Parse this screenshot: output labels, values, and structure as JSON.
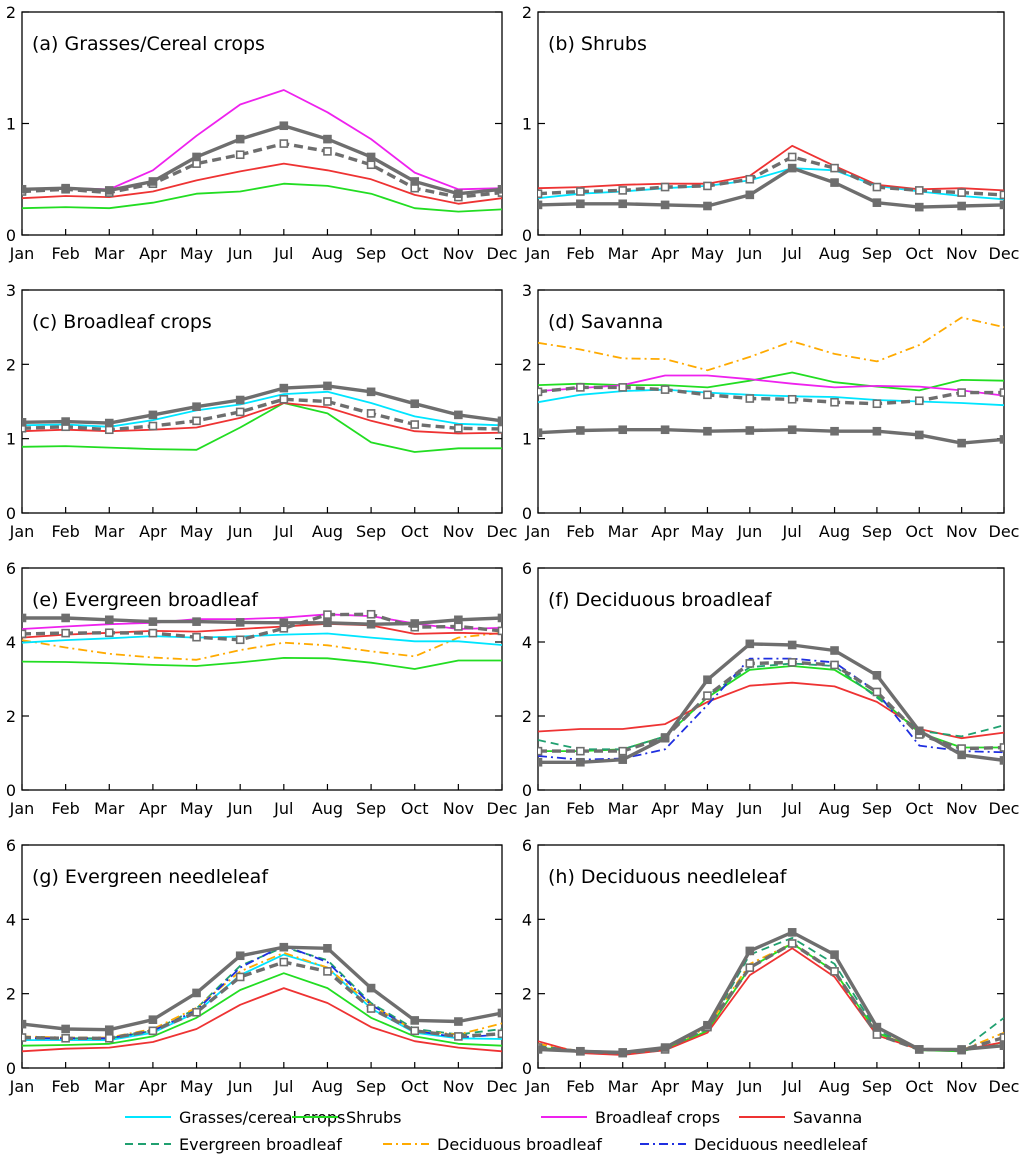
{
  "colors": {
    "grasses": "#00e5ff",
    "shrubs": "#22dd22",
    "broadleaf_crops": "#ee22ee",
    "savanna": "#ee3333",
    "evergreen_broadleaf": "#20a070",
    "deciduous_broadleaf": "#ffaa00",
    "deciduous_needleleaf": "#1f2fe0",
    "ref_solid": "#6e6e6e",
    "ref_dashed": "#6e6e6e"
  },
  "legend": {
    "items": [
      {
        "key": "grasses",
        "label": "Grasses/cereal crops",
        "dash": "solid"
      },
      {
        "key": "shrubs",
        "label": "Shrubs",
        "dash": "solid"
      },
      {
        "key": "broadleaf_crops",
        "label": "Broadleaf crops",
        "dash": "solid"
      },
      {
        "key": "savanna",
        "label": "Savanna",
        "dash": "solid"
      },
      {
        "key": "evergreen_broadleaf",
        "label": "Evergreen broadleaf",
        "dash": "dashed"
      },
      {
        "key": "deciduous_broadleaf",
        "label": "Deciduous broadleaf",
        "dash": "dashdot"
      },
      {
        "key": "deciduous_needleleaf",
        "label": "Deciduous needleleaf",
        "dash": "dashdot"
      }
    ]
  },
  "chart_data": [
    {
      "id": "a",
      "type": "line",
      "title": "(a) Grasses/Cereal crops",
      "categories": [
        "Jan",
        "Feb",
        "Mar",
        "Apr",
        "May",
        "Jun",
        "Jul",
        "Aug",
        "Sep",
        "Oct",
        "Nov",
        "Dec"
      ],
      "ylim": [
        0,
        2
      ],
      "yticks": [
        0,
        1,
        2
      ],
      "series": [
        {
          "key": "shrubs",
          "values": [
            0.24,
            0.25,
            0.24,
            0.29,
            0.37,
            0.39,
            0.46,
            0.44,
            0.37,
            0.24,
            0.21,
            0.23
          ]
        },
        {
          "key": "savanna",
          "values": [
            0.33,
            0.35,
            0.34,
            0.39,
            0.49,
            0.57,
            0.64,
            0.58,
            0.5,
            0.36,
            0.28,
            0.33
          ]
        },
        {
          "key": "broadleaf_crops",
          "values": [
            0.41,
            0.42,
            0.41,
            0.58,
            0.89,
            1.17,
            1.3,
            1.1,
            0.86,
            0.56,
            0.41,
            0.42
          ]
        },
        {
          "key": "ref_dashed",
          "marker": "square",
          "values": [
            0.39,
            0.41,
            0.38,
            0.46,
            0.64,
            0.72,
            0.82,
            0.75,
            0.63,
            0.42,
            0.34,
            0.38
          ]
        },
        {
          "key": "ref_solid",
          "marker": "square-filled",
          "values": [
            0.41,
            0.42,
            0.4,
            0.48,
            0.7,
            0.86,
            0.98,
            0.86,
            0.7,
            0.48,
            0.37,
            0.41
          ]
        }
      ]
    },
    {
      "id": "b",
      "type": "line",
      "title": "(b) Shrubs",
      "categories": [
        "Jan",
        "Feb",
        "Mar",
        "Apr",
        "May",
        "Jun",
        "Jul",
        "Aug",
        "Sep",
        "Oct",
        "Nov",
        "Dec"
      ],
      "ylim": [
        0,
        2
      ],
      "yticks": [
        0,
        1,
        2
      ],
      "series": [
        {
          "key": "grasses",
          "values": [
            0.33,
            0.37,
            0.39,
            0.42,
            0.44,
            0.49,
            0.6,
            0.58,
            0.44,
            0.39,
            0.35,
            0.32
          ]
        },
        {
          "key": "savanna",
          "values": [
            0.42,
            0.43,
            0.45,
            0.46,
            0.46,
            0.53,
            0.8,
            0.62,
            0.45,
            0.41,
            0.42,
            0.4
          ]
        },
        {
          "key": "ref_dashed",
          "marker": "square",
          "values": [
            0.37,
            0.39,
            0.4,
            0.43,
            0.44,
            0.5,
            0.7,
            0.6,
            0.43,
            0.4,
            0.38,
            0.36
          ]
        },
        {
          "key": "ref_solid",
          "marker": "square-filled",
          "values": [
            0.27,
            0.28,
            0.28,
            0.27,
            0.26,
            0.36,
            0.6,
            0.47,
            0.29,
            0.25,
            0.26,
            0.27
          ]
        }
      ]
    },
    {
      "id": "c",
      "type": "line",
      "title": "(c) Broadleaf crops",
      "categories": [
        "Jan",
        "Feb",
        "Mar",
        "Apr",
        "May",
        "Jun",
        "Jul",
        "Aug",
        "Sep",
        "Oct",
        "Nov",
        "Dec"
      ],
      "ylim": [
        0,
        3
      ],
      "yticks": [
        0,
        1,
        2,
        3
      ],
      "series": [
        {
          "key": "shrubs",
          "values": [
            0.89,
            0.9,
            0.88,
            0.86,
            0.85,
            1.15,
            1.48,
            1.34,
            0.95,
            0.82,
            0.87,
            0.87
          ]
        },
        {
          "key": "grasses",
          "values": [
            1.18,
            1.19,
            1.16,
            1.25,
            1.38,
            1.46,
            1.6,
            1.63,
            1.48,
            1.3,
            1.2,
            1.18
          ]
        },
        {
          "key": "savanna",
          "values": [
            1.1,
            1.12,
            1.1,
            1.12,
            1.15,
            1.28,
            1.48,
            1.42,
            1.24,
            1.1,
            1.07,
            1.08
          ]
        },
        {
          "key": "ref_dashed",
          "marker": "square",
          "values": [
            1.14,
            1.16,
            1.12,
            1.17,
            1.24,
            1.36,
            1.53,
            1.5,
            1.34,
            1.19,
            1.14,
            1.13
          ]
        },
        {
          "key": "ref_solid",
          "marker": "square-filled",
          "values": [
            1.22,
            1.23,
            1.21,
            1.32,
            1.43,
            1.52,
            1.68,
            1.71,
            1.63,
            1.47,
            1.32,
            1.24
          ]
        }
      ]
    },
    {
      "id": "d",
      "type": "line",
      "title": "(d) Savanna",
      "categories": [
        "Jan",
        "Feb",
        "Mar",
        "Apr",
        "May",
        "Jun",
        "Jul",
        "Aug",
        "Sep",
        "Oct",
        "Nov",
        "Dec"
      ],
      "ylim": [
        0,
        3
      ],
      "yticks": [
        0,
        1,
        2,
        3
      ],
      "series": [
        {
          "key": "deciduous_broadleaf",
          "dash": "dashdot",
          "values": [
            2.29,
            2.2,
            2.08,
            2.07,
            1.92,
            2.1,
            2.31,
            2.14,
            2.04,
            2.26,
            2.63,
            2.5
          ]
        },
        {
          "key": "shrubs",
          "values": [
            1.72,
            1.74,
            1.72,
            1.72,
            1.69,
            1.78,
            1.89,
            1.76,
            1.7,
            1.65,
            1.79,
            1.78
          ]
        },
        {
          "key": "broadleaf_crops",
          "values": [
            1.64,
            1.68,
            1.72,
            1.85,
            1.85,
            1.8,
            1.74,
            1.69,
            1.71,
            1.7,
            1.65,
            1.58
          ]
        },
        {
          "key": "grasses",
          "values": [
            1.49,
            1.59,
            1.64,
            1.66,
            1.62,
            1.59,
            1.57,
            1.56,
            1.52,
            1.5,
            1.48,
            1.45
          ]
        },
        {
          "key": "ref_dashed",
          "marker": "square",
          "values": [
            1.63,
            1.69,
            1.69,
            1.66,
            1.59,
            1.54,
            1.53,
            1.49,
            1.47,
            1.51,
            1.62,
            1.62
          ]
        },
        {
          "key": "ref_solid",
          "marker": "square-filled",
          "values": [
            1.08,
            1.11,
            1.12,
            1.12,
            1.1,
            1.11,
            1.12,
            1.1,
            1.1,
            1.05,
            0.94,
            0.99
          ]
        }
      ]
    },
    {
      "id": "e",
      "type": "line",
      "title": "(e) Evergreen broadleaf",
      "categories": [
        "Jan",
        "Feb",
        "Mar",
        "Apr",
        "May",
        "Jun",
        "Jul",
        "Aug",
        "Sep",
        "Oct",
        "Nov",
        "Dec"
      ],
      "ylim": [
        0,
        6
      ],
      "yticks": [
        0,
        2,
        4,
        6
      ],
      "series": [
        {
          "key": "shrubs",
          "values": [
            3.47,
            3.46,
            3.43,
            3.38,
            3.35,
            3.45,
            3.57,
            3.56,
            3.44,
            3.27,
            3.5,
            3.5
          ]
        },
        {
          "key": "deciduous_broadleaf",
          "dash": "dashdot",
          "values": [
            4.05,
            3.85,
            3.68,
            3.58,
            3.52,
            3.78,
            3.98,
            3.91,
            3.75,
            3.61,
            4.12,
            4.25
          ]
        },
        {
          "key": "grasses",
          "values": [
            3.98,
            4.05,
            4.1,
            4.16,
            4.12,
            4.15,
            4.2,
            4.23,
            4.12,
            4.02,
            4.02,
            3.92
          ]
        },
        {
          "key": "savanna",
          "values": [
            4.12,
            4.2,
            4.25,
            4.3,
            4.28,
            4.35,
            4.42,
            4.49,
            4.45,
            4.22,
            4.25,
            4.22
          ]
        },
        {
          "key": "broadleaf_crops",
          "values": [
            4.35,
            4.42,
            4.48,
            4.52,
            4.62,
            4.62,
            4.66,
            4.75,
            4.7,
            4.5,
            4.35,
            4.38
          ]
        },
        {
          "key": "ref_dashed",
          "marker": "square",
          "values": [
            4.22,
            4.24,
            4.25,
            4.24,
            4.13,
            4.06,
            4.37,
            4.74,
            4.75,
            4.4,
            4.42,
            4.3
          ]
        },
        {
          "key": "ref_solid",
          "marker": "square-filled",
          "values": [
            4.65,
            4.65,
            4.6,
            4.55,
            4.55,
            4.53,
            4.52,
            4.52,
            4.48,
            4.5,
            4.6,
            4.65
          ]
        }
      ]
    },
    {
      "id": "f",
      "type": "line",
      "title": "(f) Deciduous broadleaf",
      "categories": [
        "Jan",
        "Feb",
        "Mar",
        "Apr",
        "May",
        "Jun",
        "Jul",
        "Aug",
        "Sep",
        "Oct",
        "Nov",
        "Dec"
      ],
      "ylim": [
        0,
        6
      ],
      "yticks": [
        0,
        2,
        4,
        6
      ],
      "series": [
        {
          "key": "savanna",
          "values": [
            1.58,
            1.65,
            1.65,
            1.78,
            2.38,
            2.82,
            2.9,
            2.8,
            2.38,
            1.65,
            1.4,
            1.55
          ]
        },
        {
          "key": "shrubs",
          "values": [
            1.05,
            1.05,
            1.1,
            1.45,
            2.5,
            3.25,
            3.35,
            3.25,
            2.55,
            1.55,
            1.15,
            1.15
          ]
        },
        {
          "key": "evergreen_broadleaf",
          "dash": "dashed",
          "values": [
            1.35,
            1.1,
            1.1,
            1.45,
            2.55,
            3.32,
            3.42,
            3.35,
            2.5,
            1.6,
            1.45,
            1.75
          ]
        },
        {
          "key": "deciduous_needleleaf",
          "dash": "dashdot",
          "values": [
            0.92,
            0.82,
            0.85,
            1.1,
            2.3,
            3.55,
            3.55,
            3.45,
            2.65,
            1.2,
            1.05,
            1.02
          ]
        },
        {
          "key": "ref_dashed",
          "marker": "square",
          "values": [
            1.05,
            1.05,
            1.05,
            1.42,
            2.55,
            3.42,
            3.45,
            3.38,
            2.65,
            1.5,
            1.12,
            1.15
          ]
        },
        {
          "key": "ref_solid",
          "marker": "square-filled",
          "values": [
            0.75,
            0.75,
            0.82,
            1.4,
            2.98,
            3.95,
            3.92,
            3.77,
            3.1,
            1.6,
            0.95,
            0.8
          ]
        }
      ]
    },
    {
      "id": "g",
      "type": "line",
      "title": "(g) Evergreen needleleaf",
      "categories": [
        "Jan",
        "Feb",
        "Mar",
        "Apr",
        "May",
        "Jun",
        "Jul",
        "Aug",
        "Sep",
        "Oct",
        "Nov",
        "Dec"
      ],
      "ylim": [
        0,
        6
      ],
      "yticks": [
        0,
        2,
        4,
        6
      ],
      "series": [
        {
          "key": "savanna",
          "values": [
            0.45,
            0.52,
            0.55,
            0.7,
            1.05,
            1.7,
            2.15,
            1.75,
            1.1,
            0.72,
            0.55,
            0.45
          ]
        },
        {
          "key": "shrubs",
          "values": [
            0.6,
            0.62,
            0.65,
            0.85,
            1.35,
            2.1,
            2.55,
            2.15,
            1.35,
            0.85,
            0.65,
            0.6
          ]
        },
        {
          "key": "grasses",
          "values": [
            0.75,
            0.75,
            0.75,
            0.95,
            1.5,
            2.5,
            3.05,
            2.7,
            1.6,
            0.95,
            0.8,
            0.78
          ]
        },
        {
          "key": "evergreen_broadleaf",
          "dash": "dashed",
          "values": [
            0.82,
            0.8,
            0.8,
            1.0,
            1.6,
            2.75,
            3.25,
            2.9,
            1.75,
            1.05,
            0.9,
            1.05
          ]
        },
        {
          "key": "deciduous_broadleaf",
          "dash": "dashdot",
          "values": [
            0.85,
            0.82,
            0.82,
            1.05,
            1.62,
            2.6,
            3.1,
            2.7,
            1.7,
            1.0,
            0.9,
            1.2
          ]
        },
        {
          "key": "deciduous_needleleaf",
          "dash": "dashdot",
          "values": [
            0.8,
            0.8,
            0.8,
            1.0,
            1.55,
            2.7,
            3.3,
            2.85,
            1.7,
            1.0,
            0.82,
            0.9
          ]
        },
        {
          "key": "ref_dashed",
          "marker": "square",
          "values": [
            0.82,
            0.8,
            0.8,
            1.0,
            1.5,
            2.45,
            2.85,
            2.6,
            1.6,
            1.0,
            0.85,
            0.92
          ]
        },
        {
          "key": "ref_solid",
          "marker": "square-filled",
          "values": [
            1.18,
            1.05,
            1.03,
            1.3,
            2.02,
            3.02,
            3.25,
            3.22,
            2.15,
            1.28,
            1.25,
            1.48
          ]
        }
      ]
    },
    {
      "id": "h",
      "type": "line",
      "title": "(h) Deciduous needleleaf",
      "categories": [
        "Jan",
        "Feb",
        "Mar",
        "Apr",
        "May",
        "Jun",
        "Jul",
        "Aug",
        "Sep",
        "Oct",
        "Nov",
        "Dec"
      ],
      "ylim": [
        0,
        6
      ],
      "yticks": [
        0,
        2,
        4,
        6
      ],
      "series": [
        {
          "key": "evergreen_broadleaf",
          "dash": "dashed",
          "values": [
            0.6,
            0.45,
            0.4,
            0.5,
            1.05,
            3.05,
            3.5,
            2.8,
            1.0,
            0.5,
            0.48,
            1.35
          ]
        },
        {
          "key": "deciduous_broadleaf",
          "dash": "dashdot",
          "values": [
            0.65,
            0.45,
            0.4,
            0.5,
            1.1,
            2.8,
            3.35,
            2.6,
            0.95,
            0.5,
            0.48,
            0.95
          ]
        },
        {
          "key": "shrubs",
          "values": [
            0.55,
            0.45,
            0.4,
            0.5,
            1.0,
            2.7,
            3.35,
            2.6,
            0.95,
            0.48,
            0.45,
            0.7
          ]
        },
        {
          "key": "savanna",
          "values": [
            0.72,
            0.4,
            0.35,
            0.48,
            0.95,
            2.5,
            3.22,
            2.45,
            0.88,
            0.5,
            0.48,
            0.7
          ]
        },
        {
          "key": "ref_dashed",
          "marker": "square",
          "values": [
            0.55,
            0.45,
            0.4,
            0.5,
            1.1,
            2.7,
            3.35,
            2.6,
            0.9,
            0.5,
            0.48,
            0.82
          ]
        },
        {
          "key": "ref_solid",
          "marker": "square-filled",
          "values": [
            0.5,
            0.45,
            0.42,
            0.55,
            1.15,
            3.15,
            3.65,
            3.05,
            1.1,
            0.5,
            0.5,
            0.6
          ]
        }
      ]
    }
  ]
}
